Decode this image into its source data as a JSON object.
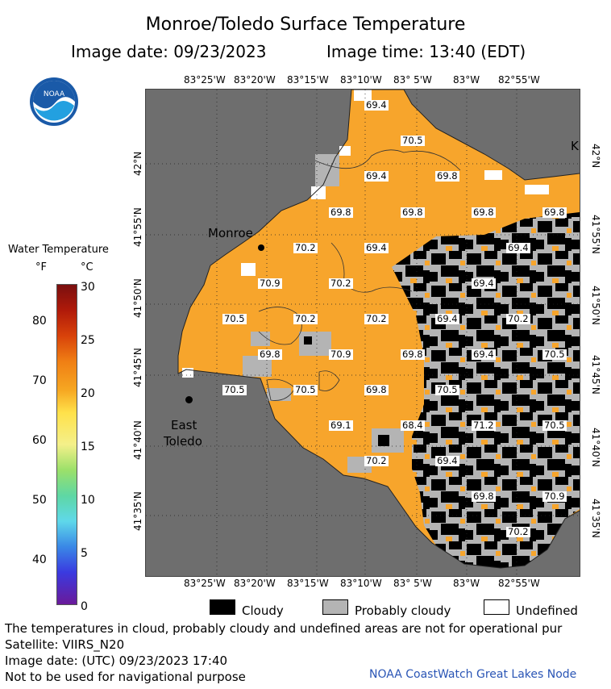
{
  "header": {
    "title": "Monroe/Toledo Surface Temperature",
    "image_date": "Image date: 09/23/2023",
    "image_time": "Image time: 13:40 (EDT)"
  },
  "logo": {
    "text": "NOAA",
    "icon": "noaa-logo-icon"
  },
  "legend": {
    "title": "Water Temperature",
    "unit_f": "°F",
    "unit_c": "°C",
    "f_ticks": [
      "80",
      "70",
      "60",
      "50",
      "40"
    ],
    "c_ticks": [
      "30",
      "25",
      "20",
      "15",
      "10",
      "5",
      "0"
    ]
  },
  "map": {
    "lon_labels": [
      "83°25'W",
      "83°20'W",
      "83°15'W",
      "83°10'W",
      "83° 5'W",
      "83°W",
      "82°55'W"
    ],
    "lat_labels": [
      "42°N",
      "41°55'N",
      "41°50'N",
      "41°45'N",
      "41°40'N",
      "41°35'N"
    ],
    "cities": {
      "monroe": "Monroe",
      "east_toledo_1": "East",
      "east_toledo_2": "Toledo",
      "edge": "K"
    },
    "temperature_labels": [
      "69.4",
      "70.5",
      "69.4",
      "69.8",
      "69.8",
      "69.8",
      "69.8",
      "69.8",
      "70.2",
      "69.4",
      "69.4",
      "70.9",
      "70.2",
      "69.4",
      "70.5",
      "70.2",
      "70.2",
      "69.4",
      "70.2",
      "69.8",
      "70.9",
      "69.8",
      "69.4",
      "70.5",
      "70.5",
      "70.5",
      "69.8",
      "70.5",
      "69.1",
      "68.4",
      "71.2",
      "70.5",
      "70.2",
      "69.4",
      "69.8",
      "70.9",
      "70.2"
    ],
    "colors": {
      "water": "#f7a52c",
      "land": "#6e6e6e",
      "cloudy": "#000000",
      "probably_cloudy": "#b4b4b4",
      "undefined": "#ffffff"
    }
  },
  "key": {
    "cloudy": "Cloudy",
    "probably_cloudy": "Probably cloudy",
    "undefined": "Undefined"
  },
  "footer": {
    "note": "The temperatures in cloud, probably cloudy and undefined areas are not for operational pur",
    "satellite": "Satellite: VIIRS_N20",
    "utc_date": "Image date: (UTC) 09/23/2023  17:40",
    "disclaimer": "Not to be used for navigational purpose",
    "credit": "NOAA CoastWatch Great Lakes Node"
  }
}
